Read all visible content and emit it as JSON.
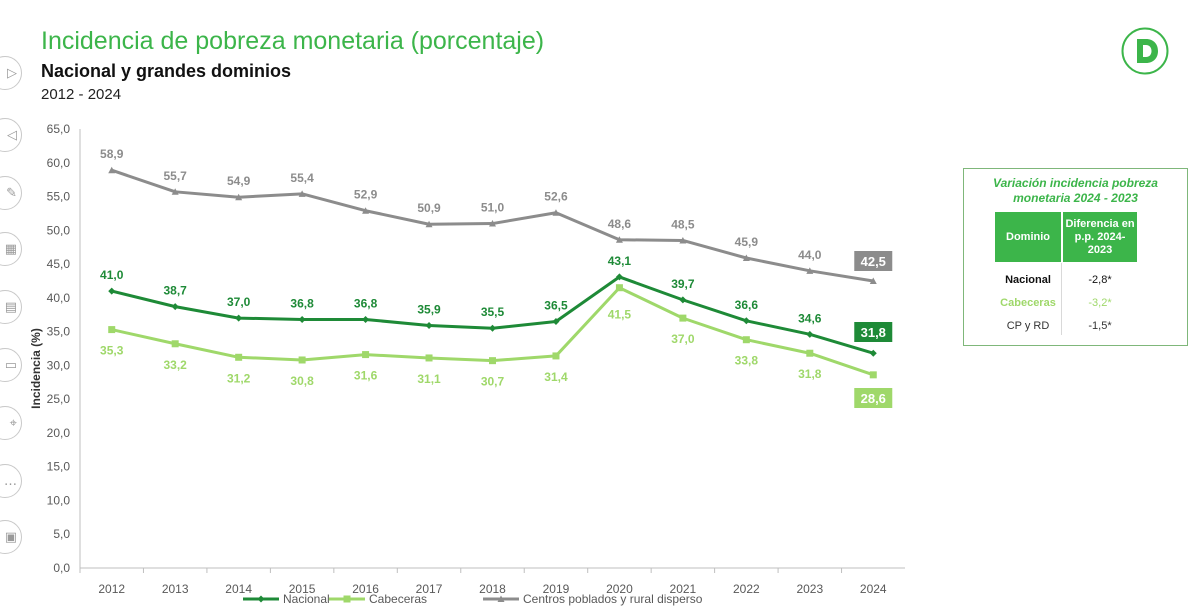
{
  "header": {
    "title": "Incidencia de pobreza monetaria (porcentaje)",
    "subtitle": "Nacional y grandes dominios",
    "years": "2012 - 2024"
  },
  "toolbar": {
    "items": [
      {
        "name": "next-slide-button",
        "icon": "play-triangle",
        "glyph": "▷"
      },
      {
        "name": "previous-slide-button",
        "icon": "back-triangle",
        "glyph": "◁"
      },
      {
        "name": "pen-tool-button",
        "icon": "pen",
        "glyph": "✎"
      },
      {
        "name": "slides-grid-button",
        "icon": "grid",
        "glyph": "▦"
      },
      {
        "name": "subtitles-button",
        "icon": "subtitles",
        "glyph": "▤"
      },
      {
        "name": "camera-button",
        "icon": "video-camera",
        "glyph": "▭"
      },
      {
        "name": "pointer-button",
        "icon": "laser-pointer",
        "glyph": "⌖"
      },
      {
        "name": "more-options-button",
        "icon": "ellipsis",
        "glyph": "…"
      },
      {
        "name": "screen-button",
        "icon": "monitor",
        "glyph": "▣"
      }
    ]
  },
  "colors": {
    "nacional": "#1e8a37",
    "cabeceras": "#9fd86a",
    "centros": "#8c8c8c",
    "accent": "#3cb54a"
  },
  "chart_data": {
    "type": "line",
    "x": [
      "2012",
      "2013",
      "2014",
      "2015",
      "2016",
      "2017",
      "2018",
      "2019",
      "2020",
      "2021",
      "2022",
      "2023",
      "2024"
    ],
    "ylabel": "Incidencia (%)",
    "ylim": [
      0,
      65
    ],
    "yticks": [
      "0,0",
      "5,0",
      "10,0",
      "15,0",
      "20,0",
      "25,0",
      "30,0",
      "35,0",
      "40,0",
      "45,0",
      "50,0",
      "55,0",
      "60,0",
      "65,0"
    ],
    "grid": false,
    "legend_position": "bottom",
    "series": [
      {
        "name": "Nacional",
        "values": [
          41.0,
          38.7,
          37.0,
          36.8,
          36.8,
          35.9,
          35.5,
          36.5,
          43.1,
          39.7,
          36.6,
          34.6,
          31.8
        ],
        "labels": [
          "41,0",
          "38,7",
          "37,0",
          "36,8",
          "36,8",
          "35,9",
          "35,5",
          "36,5",
          "43,1",
          "39,7",
          "36,6",
          "34,6",
          "31,8"
        ]
      },
      {
        "name": "Cabeceras",
        "values": [
          35.3,
          33.2,
          31.2,
          30.8,
          31.6,
          31.1,
          30.7,
          31.4,
          41.5,
          37.0,
          33.8,
          31.8,
          28.6
        ],
        "labels": [
          "35,3",
          "33,2",
          "31,2",
          "30,8",
          "31,6",
          "31,1",
          "30,7",
          "31,4",
          "41,5",
          "37,0",
          "33,8",
          "31,8",
          "28,6"
        ]
      },
      {
        "name": "Centros poblados y rural disperso",
        "values": [
          58.9,
          55.7,
          54.9,
          55.4,
          52.9,
          50.9,
          51.0,
          52.6,
          48.6,
          48.5,
          45.9,
          44.0,
          42.5
        ],
        "labels": [
          "58,9",
          "55,7",
          "54,9",
          "55,4",
          "52,9",
          "50,9",
          "51,0",
          "52,6",
          "48,6",
          "48,5",
          "45,9",
          "44,0",
          "42,5"
        ]
      }
    ]
  },
  "variation_table": {
    "title": "Variación incidencia pobreza monetaria 2024 - 2023",
    "headers": [
      "Dominio",
      "Diferencia en p.p. 2024-2023"
    ],
    "rows": [
      {
        "dominio": "Nacional",
        "diferencia": "-2,8*"
      },
      {
        "dominio": "Cabeceras",
        "diferencia": "-3,2*"
      },
      {
        "dominio": "CP y RD",
        "diferencia": "-1,5*"
      }
    ]
  }
}
